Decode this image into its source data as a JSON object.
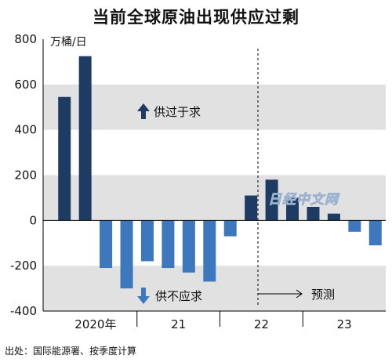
{
  "title": "当前全球原油出现供应过剩",
  "source": "出处：国际能源署、按季度计算",
  "watermark": "日经中文网",
  "chart_data": {
    "type": "bar",
    "unit": "万桶/日",
    "ylim": [
      -400,
      800
    ],
    "yticks": [
      -400,
      -200,
      0,
      200,
      400,
      600,
      800
    ],
    "grid": "alternating gray bands",
    "quarters": [
      "2020Q1",
      "2020Q2",
      "2020Q3",
      "2020Q4",
      "2021Q1",
      "2021Q2",
      "2021Q3",
      "2021Q4",
      "2022Q1",
      "2022Q2",
      "2022Q3",
      "2022Q4",
      "2023Q1",
      "2023Q2",
      "2023Q3",
      "2023Q4"
    ],
    "values": [
      545,
      725,
      -210,
      -300,
      -180,
      -210,
      -230,
      -270,
      -70,
      110,
      180,
      100,
      60,
      30,
      -50,
      -110
    ],
    "kind": [
      "actual",
      "actual",
      "actual",
      "actual",
      "actual",
      "actual",
      "actual",
      "actual",
      "actual",
      "actual",
      "forecast",
      "forecast",
      "forecast",
      "forecast",
      "forecast",
      "forecast"
    ],
    "year_labels": [
      "2020年",
      "21",
      "22",
      "23"
    ],
    "annotations": {
      "surplus": "供过于求",
      "deficit": "供不应求",
      "forecast": "预测"
    },
    "colors": {
      "positive": "#1d3b63",
      "negative": "#3d78bf",
      "band": "#e1e1e1",
      "axis": "#000000"
    }
  }
}
